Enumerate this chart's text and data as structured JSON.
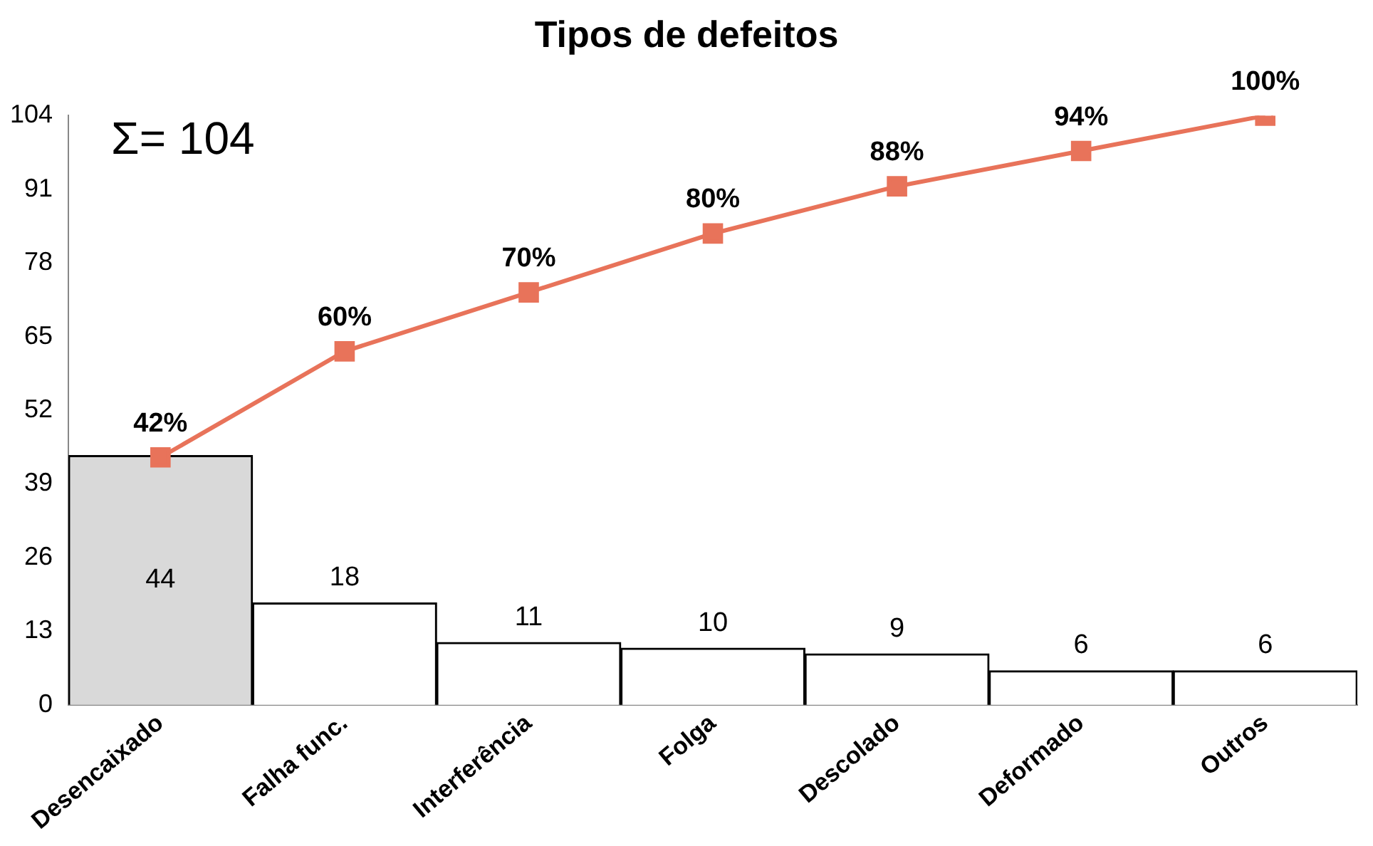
{
  "chart_data": {
    "type": "bar",
    "title": "Tipos de defeitos",
    "categories": [
      "Desencaixado",
      "Falha func.",
      "Interferência",
      "Folga",
      "Descolado",
      "Deformado",
      "Outros"
    ],
    "series": [
      {
        "colors": [
          "#d9d9d9",
          "#ffffff",
          "#ffffff",
          "#ffffff",
          "#ffffff",
          "#ffffff",
          "#ffffff"
        ],
        "values": [
          44,
          18,
          11,
          10,
          9,
          6,
          6
        ],
        "value_labels": [
          "44",
          "18",
          "11",
          "10",
          "9",
          "6",
          "6"
        ]
      },
      {
        "type": "line",
        "axis": "y2",
        "color": "#e8735a",
        "values": [
          42,
          60,
          70,
          80,
          88,
          94,
          100
        ],
        "value_labels": [
          "42%",
          "60%",
          "70%",
          "80%",
          "88%",
          "94%",
          "100%"
        ]
      }
    ],
    "ylim": [
      0,
      104
    ],
    "y2lim": [
      0,
      100
    ],
    "tick_labels": "xy",
    "yticks": [
      0,
      13,
      26,
      39,
      52,
      65,
      78,
      91,
      104
    ],
    "grid": false,
    "legend": false,
    "marker": "square",
    "line_style": "solid",
    "annotations": [
      "Σ= 104"
    ]
  }
}
